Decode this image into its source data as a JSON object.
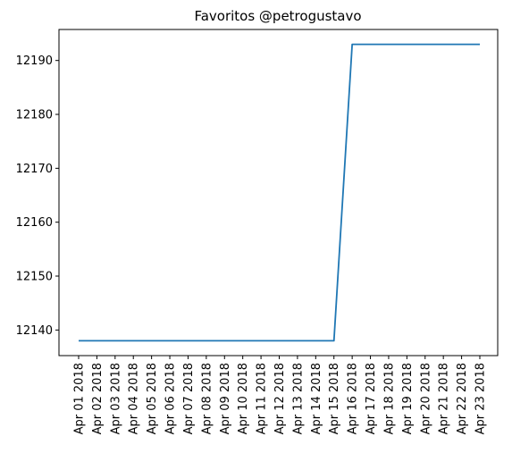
{
  "chart_data": {
    "type": "line",
    "title": "Favoritos @petrogustavo",
    "xlabel": "",
    "ylabel": "",
    "x": [
      "Apr 01 2018",
      "Apr 02 2018",
      "Apr 03 2018",
      "Apr 04 2018",
      "Apr 05 2018",
      "Apr 06 2018",
      "Apr 07 2018",
      "Apr 08 2018",
      "Apr 09 2018",
      "Apr 10 2018",
      "Apr 11 2018",
      "Apr 12 2018",
      "Apr 13 2018",
      "Apr 14 2018",
      "Apr 15 2018",
      "Apr 16 2018",
      "Apr 17 2018",
      "Apr 18 2018",
      "Apr 19 2018",
      "Apr 20 2018",
      "Apr 21 2018",
      "Apr 22 2018",
      "Apr 23 2018"
    ],
    "series": [
      {
        "values": [
          12138,
          12138,
          12138,
          12138,
          12138,
          12138,
          12138,
          12138,
          12138,
          12138,
          12138,
          12138,
          12138,
          12138,
          12138,
          12193,
          12193,
          12193,
          12193,
          12193,
          12193,
          12193,
          12193
        ],
        "color": "#1f77b4"
      }
    ],
    "ylim": [
      12135.25,
      12195.75
    ],
    "yticks": [
      "12140",
      "12150",
      "12160",
      "12170",
      "12180",
      "12190"
    ],
    "grid": false,
    "legend": "none"
  }
}
